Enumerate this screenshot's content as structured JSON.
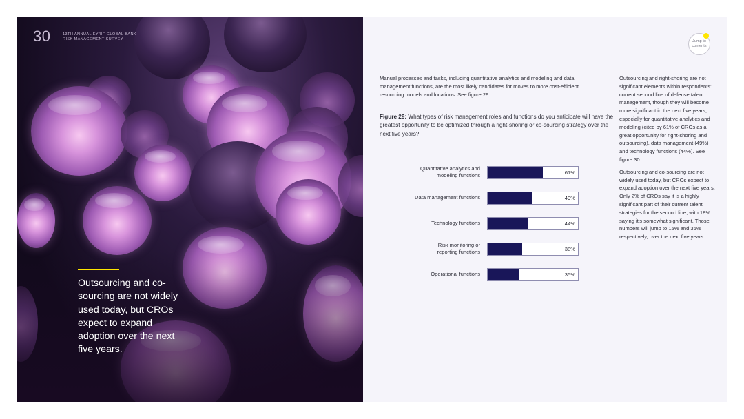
{
  "header": {
    "page_number": "30",
    "survey_title_line1": "13TH ANNUAL EY/IIF GLOBAL BANK",
    "survey_title_line2": "RISK MANAGEMENT SURVEY"
  },
  "jump_button": {
    "line1": "Jump to",
    "line2": "contents"
  },
  "pull_quote": "Outsourcing and co-sourcing are not widely used today, but CROs expect to expand adoption over the next five years.",
  "intro_text": "Manual processes and tasks, including quantitative analytics and modeling and data management functions, are the most likely candidates for moves to more cost-efficient resourcing models and locations. See figure 29.",
  "figure": {
    "label": "Figure 29:",
    "question": "What types of risk management roles and functions do you anticipate will have the greatest opportunity to be optimized through a right-shoring or co-sourcing strategy over the next five years?"
  },
  "chart_data": {
    "type": "bar",
    "orientation": "horizontal",
    "categories": [
      "Quantitative analytics and modeling functions",
      "Data management functions",
      "Technology functions",
      "Risk monitoring or reporting functions",
      "Operational functions"
    ],
    "category_lines": [
      [
        "Quantitative analytics and",
        "modeling functions"
      ],
      [
        "Data management functions"
      ],
      [
        "Technology functions"
      ],
      [
        "Risk monitoring or",
        "reporting functions"
      ],
      [
        "Operational functions"
      ]
    ],
    "values": [
      61,
      49,
      44,
      38,
      35
    ],
    "value_labels": [
      "61%",
      "49%",
      "44%",
      "38%",
      "35%"
    ],
    "xlim": [
      0,
      100
    ],
    "bar_color": "#191659",
    "grid": false
  },
  "side_column": {
    "para1": "Outsourcing and right-shoring are not significant elements within respondents' current second line of defense talent management, though they will become more significant in the next five years, especially for quantitative analytics and modeling (cited by 61% of CROs as a great opportunity for right-shoring and outsourcing), data management (49%) and technology functions (44%). See figure 30.",
    "para2": "Outsourcing and co-sourcing are not widely used today, but CROs expect to expand adoption over the next five years. Only 2% of CROs say it is a highly significant part of their current talent strategies for the second line, with 18% saying it's somewhat significant. Those numbers will jump to 15% and 36% respectively, over the next five years."
  },
  "colors": {
    "accent": "#ffe600",
    "bar": "#191659",
    "panel_background": "#f5f4fa"
  }
}
